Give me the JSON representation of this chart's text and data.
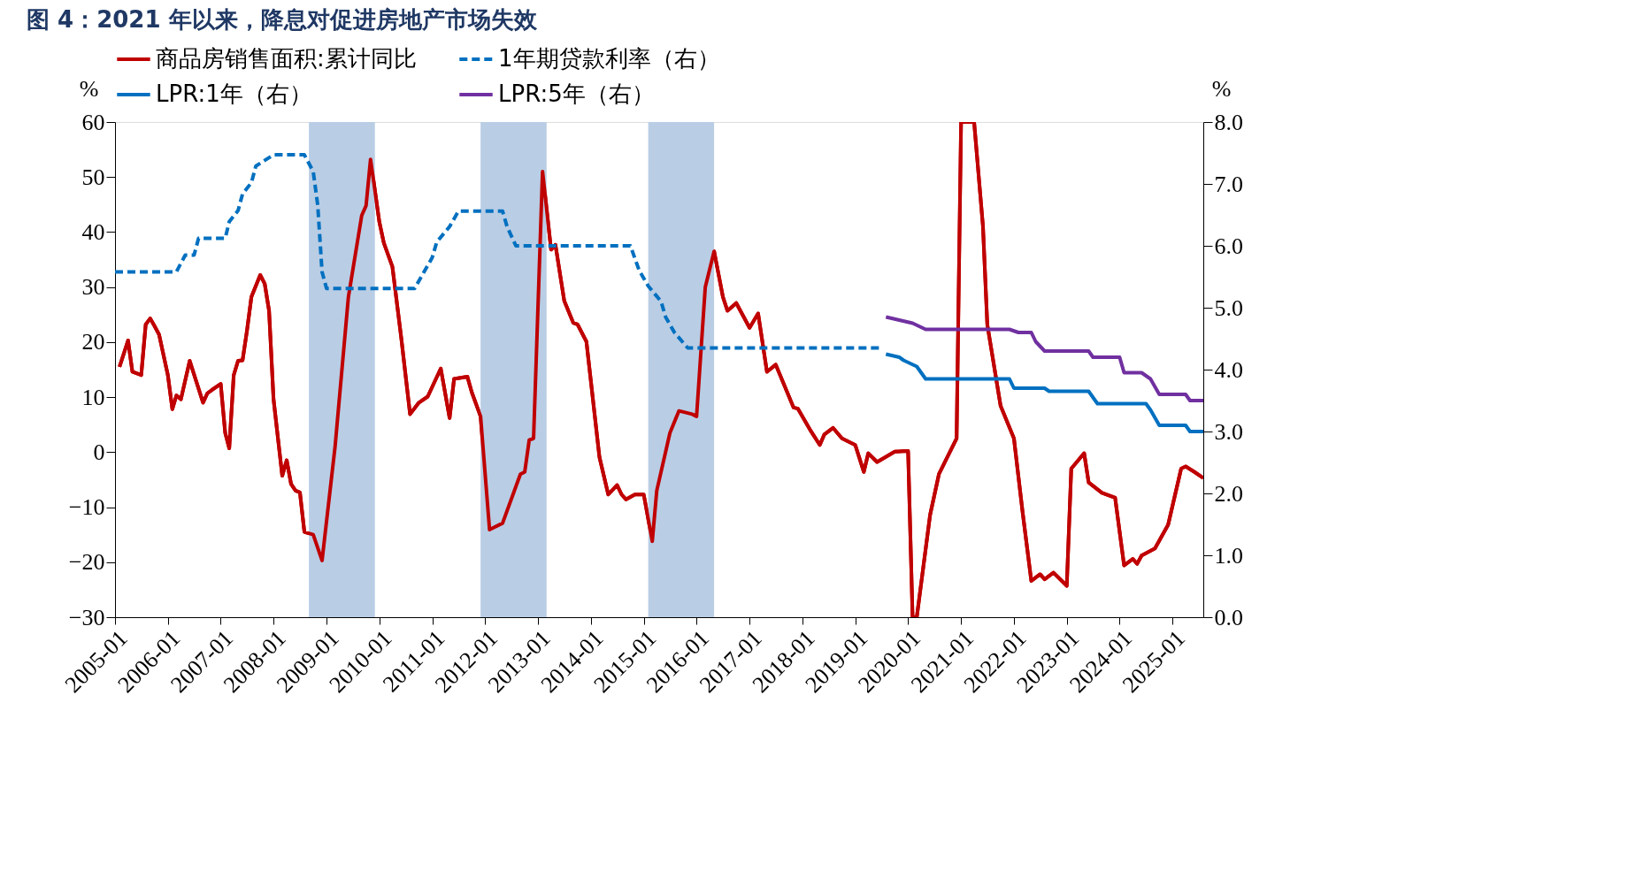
{
  "chart_data": {
    "type": "line",
    "title": "图 4：2021 年以来，降息对促进房地产市场失效",
    "ylabel": "%",
    "y2label": "%",
    "xlim": [
      "2005-01",
      "2025-08"
    ],
    "xticks": [
      "2005-01",
      "2006-01",
      "2007-01",
      "2008-01",
      "2009-01",
      "2010-01",
      "2011-01",
      "2012-01",
      "2013-01",
      "2014-01",
      "2015-01",
      "2016-01",
      "2017-01",
      "2018-01",
      "2019-01",
      "2020-01",
      "2021-01",
      "2022-01",
      "2023-01",
      "2024-01",
      "2025-01"
    ],
    "ylim": [
      -30,
      60
    ],
    "yticks": [
      -30,
      -20,
      -10,
      0,
      10,
      20,
      30,
      40,
      50,
      60
    ],
    "y2lim": [
      0,
      8
    ],
    "y2ticks": [
      {
        "value": 0,
        "label": "0.0"
      },
      {
        "value": 1,
        "label": "1.0"
      },
      {
        "value": 2,
        "label": "2.0"
      },
      {
        "value": 3,
        "label": "3.0"
      },
      {
        "value": 4,
        "label": "4.0"
      },
      {
        "value": 5,
        "label": "5.0"
      },
      {
        "value": 6,
        "label": "6.0"
      },
      {
        "value": 7,
        "label": "7.0"
      },
      {
        "value": 8,
        "label": "8.0"
      }
    ],
    "legend": "top",
    "grid": false,
    "marker": "none",
    "bands": [
      {
        "axis": "x",
        "from": "2008-09",
        "to": "2009-12",
        "color": "#b9cde5"
      },
      {
        "axis": "x",
        "from": "2011-12",
        "to": "2013-03",
        "color": "#b9cde5"
      },
      {
        "axis": "x",
        "from": "2015-02",
        "to": "2016-05",
        "color": "#b9cde5"
      }
    ],
    "series": [
      {
        "name": "商品房销售面积:累计同比",
        "color": "#c00000",
        "line_style": "solid",
        "x": [
          "2005-02",
          "2005-04",
          "2005-05",
          "2005-07",
          "2005-08",
          "2005-09",
          "2005-10",
          "2005-11",
          "2006-01",
          "2006-02",
          "2006-03",
          "2006-04",
          "2006-06",
          "2006-09",
          "2006-10",
          "2006-11",
          "2007-01",
          "2007-02",
          "2007-03",
          "2007-04",
          "2007-05",
          "2007-06",
          "2007-07",
          "2007-08",
          "2007-10",
          "2007-11",
          "2007-12",
          "2008-01",
          "2008-03",
          "2008-04",
          "2008-05",
          "2008-06",
          "2008-07",
          "2008-08",
          "2008-10",
          "2008-12",
          "2009-03",
          "2009-06",
          "2009-09",
          "2009-10",
          "2009-11",
          "2010-01",
          "2010-02",
          "2010-04",
          "2010-06",
          "2010-08",
          "2010-10",
          "2010-12",
          "2011-03",
          "2011-05",
          "2011-06",
          "2011-09",
          "2011-10",
          "2011-12",
          "2012-02",
          "2012-05",
          "2012-09",
          "2012-10",
          "2012-11",
          "2012-12",
          "2013-02",
          "2013-04",
          "2013-05",
          "2013-07",
          "2013-09",
          "2013-10",
          "2013-12",
          "2014-03",
          "2014-05",
          "2014-07",
          "2014-08",
          "2014-09",
          "2014-11",
          "2015-01",
          "2015-03",
          "2015-04",
          "2015-07",
          "2015-09",
          "2015-12",
          "2016-01",
          "2016-03",
          "2016-05",
          "2016-07",
          "2016-08",
          "2016-10",
          "2017-01",
          "2017-03",
          "2017-05",
          "2017-07",
          "2017-11",
          "2017-12",
          "2018-03",
          "2018-05",
          "2018-06",
          "2018-08",
          "2018-10",
          "2019-01",
          "2019-03",
          "2019-04",
          "2019-06",
          "2019-10",
          "2020-01",
          "2020-02",
          "2020-03",
          "2020-06",
          "2020-08",
          "2020-12",
          "2021-01",
          "2021-04",
          "2021-06",
          "2021-07",
          "2021-10",
          "2022-01",
          "2022-03",
          "2022-05",
          "2022-07",
          "2022-08",
          "2022-10",
          "2023-01",
          "2023-02",
          "2023-05",
          "2023-06",
          "2023-09",
          "2023-12",
          "2024-02",
          "2024-04",
          "2024-05",
          "2024-06",
          "2024-09",
          "2024-12",
          "2025-03",
          "2025-04",
          "2025-06",
          "2025-08"
        ],
        "values": [
          15.5,
          20.3,
          14.6,
          14.0,
          23.2,
          24.3,
          22.9,
          21.4,
          14.0,
          7.8,
          10.3,
          9.6,
          16.6,
          9.0,
          10.7,
          11.3,
          12.4,
          3.5,
          0.7,
          14.0,
          16.6,
          16.7,
          22.0,
          28.2,
          32.2,
          30.6,
          25.7,
          9.6,
          -4.3,
          -1.5,
          -5.8,
          -7.0,
          -7.3,
          -14.5,
          -15.0,
          -19.7,
          1.0,
          28.2,
          43.0,
          44.8,
          53.2,
          41.8,
          38.0,
          33.7,
          20.8,
          6.9,
          9.0,
          10.1,
          15.2,
          6.2,
          13.3,
          13.7,
          10.9,
          6.5,
          -14.1,
          -12.9,
          -4.0,
          -3.6,
          2.2,
          2.5,
          51.0,
          36.8,
          37.7,
          27.5,
          23.5,
          23.2,
          20.1,
          -0.9,
          -7.7,
          -6.0,
          -7.7,
          -8.6,
          -7.7,
          -7.7,
          -16.2,
          -7.0,
          3.5,
          7.5,
          6.9,
          6.5,
          30.0,
          36.5,
          28.2,
          25.7,
          27.1,
          22.6,
          25.2,
          14.6,
          15.9,
          8.1,
          7.9,
          3.8,
          1.3,
          3.2,
          4.4,
          2.5,
          1.3,
          -3.6,
          -0.2,
          -1.8,
          0.1,
          0.2,
          -30,
          -30,
          -11.4,
          -4.0,
          2.5,
          60,
          60,
          41.1,
          23.2,
          8.4,
          2.5,
          -10.7,
          -23.4,
          -22.2,
          -23.1,
          -21.9,
          -24.3,
          -3.0,
          -0.2,
          -5.5,
          -7.4,
          -8.3,
          -20.6,
          -19.4,
          -20.3,
          -18.8,
          -17.5,
          -13.2,
          -3.0,
          -2.6,
          -3.6,
          -4.7
        ]
      },
      {
        "name": "1年期贷款利率（右）",
        "color": "#0070c0",
        "line_style": "dashed",
        "axis": "y2",
        "x": [
          "2005-01",
          "2006-03",
          "2006-05",
          "2006-07",
          "2006-08",
          "2007-02",
          "2007-03",
          "2007-05",
          "2007-06",
          "2007-08",
          "2007-09",
          "2008-01",
          "2008-08",
          "2008-10",
          "2008-11",
          "2008-12",
          "2009-01",
          "2010-09",
          "2010-11",
          "2011-01",
          "2011-02",
          "2011-05",
          "2011-07",
          "2012-05",
          "2012-06",
          "2012-08",
          "2014-10",
          "2014-12",
          "2015-02",
          "2015-05",
          "2015-06",
          "2015-08",
          "2015-11",
          "2019-07"
        ],
        "values": [
          5.58,
          5.58,
          5.85,
          5.85,
          6.12,
          6.12,
          6.39,
          6.57,
          6.84,
          7.02,
          7.29,
          7.47,
          7.47,
          7.2,
          6.66,
          5.58,
          5.31,
          5.31,
          5.56,
          5.81,
          6.06,
          6.31,
          6.56,
          6.56,
          6.31,
          6.0,
          6.0,
          5.6,
          5.35,
          5.1,
          4.85,
          4.6,
          4.35,
          4.35
        ]
      },
      {
        "name": "LPR:1年（右）",
        "color": "#0070c0",
        "line_style": "solid",
        "axis": "y2",
        "x": [
          "2019-08",
          "2019-11",
          "2019-12",
          "2020-03",
          "2020-05",
          "2021-12",
          "2022-01",
          "2022-08",
          "2022-09",
          "2023-06",
          "2023-08",
          "2024-07",
          "2024-08",
          "2024-10",
          "2025-04",
          "2025-05",
          "2025-08"
        ],
        "values": [
          4.25,
          4.2,
          4.15,
          4.05,
          3.85,
          3.85,
          3.7,
          3.7,
          3.65,
          3.65,
          3.45,
          3.45,
          3.35,
          3.1,
          3.1,
          3.0,
          3.0
        ]
      },
      {
        "name": "LPR:5年（右）",
        "color": "#7030a0",
        "line_style": "solid",
        "axis": "y2",
        "x": [
          "2019-08",
          "2019-11",
          "2020-02",
          "2020-05",
          "2021-12",
          "2022-02",
          "2022-05",
          "2022-06",
          "2022-08",
          "2023-06",
          "2023-07",
          "2024-01",
          "2024-02",
          "2024-06",
          "2024-08",
          "2024-10",
          "2025-04",
          "2025-05",
          "2025-08"
        ],
        "values": [
          4.85,
          4.8,
          4.75,
          4.65,
          4.65,
          4.6,
          4.6,
          4.45,
          4.3,
          4.3,
          4.2,
          4.2,
          3.95,
          3.95,
          3.85,
          3.6,
          3.6,
          3.5,
          3.5
        ]
      }
    ]
  }
}
